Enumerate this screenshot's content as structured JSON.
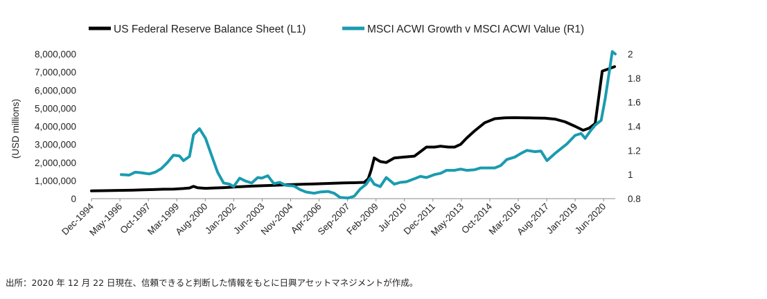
{
  "chart_data": {
    "type": "line",
    "legend_position": "top",
    "left_axis_label": "(USD millions)",
    "left_ticks": [
      "8,000,000",
      "7,000,000",
      "6,000,000",
      "5,000,000",
      "4,000,000",
      "3,000,000",
      "2,000,000",
      "1,000,000",
      "0"
    ],
    "right_ticks": [
      "2",
      "1.8",
      "1.6",
      "1.4",
      "1.2",
      "1",
      "0.8"
    ],
    "left_ylim": [
      0,
      8000000
    ],
    "right_ylim": [
      0.8,
      2.0
    ],
    "x_tick_labels": [
      "Dec-1994",
      "May-1996",
      "Oct-1997",
      "Mar-1999",
      "Aug-2000",
      "Jan-2002",
      "Jun-2003",
      "Nov-2004",
      "Apr-2006",
      "Sep-2007",
      "Feb-2009",
      "Jul-2010",
      "Dec-2011",
      "May-2013",
      "Oct-2014",
      "Mar-2016",
      "Aug-2017",
      "Jan-2019",
      "Jun-2020"
    ],
    "xlim": [
      1994.92,
      2021.0
    ],
    "series": [
      {
        "name": "US Federal Reserve Balance Sheet (L1)",
        "axis": "left",
        "color": "#000000",
        "points": [
          [
            1994.92,
            430000
          ],
          [
            1995.5,
            440000
          ],
          [
            1996.0,
            450000
          ],
          [
            1996.5,
            460000
          ],
          [
            1997.0,
            470000
          ],
          [
            1997.5,
            490000
          ],
          [
            1998.0,
            500000
          ],
          [
            1998.5,
            520000
          ],
          [
            1999.0,
            530000
          ],
          [
            1999.5,
            560000
          ],
          [
            1999.8,
            590000
          ],
          [
            2000.0,
            680000
          ],
          [
            2000.2,
            600000
          ],
          [
            2000.6,
            570000
          ],
          [
            2001.0,
            590000
          ],
          [
            2001.5,
            610000
          ],
          [
            2002.0,
            640000
          ],
          [
            2002.5,
            670000
          ],
          [
            2003.0,
            700000
          ],
          [
            2003.5,
            720000
          ],
          [
            2004.0,
            740000
          ],
          [
            2004.5,
            760000
          ],
          [
            2005.0,
            780000
          ],
          [
            2005.5,
            800000
          ],
          [
            2006.0,
            810000
          ],
          [
            2006.5,
            830000
          ],
          [
            2007.0,
            850000
          ],
          [
            2007.5,
            870000
          ],
          [
            2008.0,
            880000
          ],
          [
            2008.5,
            900000
          ],
          [
            2008.7,
            1100000
          ],
          [
            2008.85,
            1600000
          ],
          [
            2009.0,
            2250000
          ],
          [
            2009.3,
            2050000
          ],
          [
            2009.6,
            2000000
          ],
          [
            2010.0,
            2250000
          ],
          [
            2010.5,
            2300000
          ],
          [
            2011.0,
            2350000
          ],
          [
            2011.3,
            2600000
          ],
          [
            2011.6,
            2850000
          ],
          [
            2012.0,
            2850000
          ],
          [
            2012.3,
            2900000
          ],
          [
            2012.7,
            2850000
          ],
          [
            2013.0,
            2850000
          ],
          [
            2013.3,
            3000000
          ],
          [
            2013.6,
            3350000
          ],
          [
            2014.0,
            3750000
          ],
          [
            2014.5,
            4200000
          ],
          [
            2015.0,
            4420000
          ],
          [
            2015.5,
            4470000
          ],
          [
            2016.0,
            4480000
          ],
          [
            2016.5,
            4470000
          ],
          [
            2017.0,
            4460000
          ],
          [
            2017.5,
            4450000
          ],
          [
            2018.0,
            4400000
          ],
          [
            2018.5,
            4250000
          ],
          [
            2019.0,
            4000000
          ],
          [
            2019.4,
            3780000
          ],
          [
            2019.7,
            3900000
          ],
          [
            2020.0,
            4150000
          ],
          [
            2020.2,
            5800000
          ],
          [
            2020.35,
            7050000
          ],
          [
            2020.6,
            7150000
          ],
          [
            2020.97,
            7300000
          ]
        ]
      },
      {
        "name": "MSCI ACWI Growth v MSCI ACWI Value (R1)",
        "axis": "right",
        "color": "#1a9bb0",
        "points": [
          [
            1996.4,
            1.0
          ],
          [
            1996.8,
            0.995
          ],
          [
            1997.1,
            1.02
          ],
          [
            1997.4,
            1.015
          ],
          [
            1997.8,
            1.005
          ],
          [
            1998.1,
            1.02
          ],
          [
            1998.4,
            1.05
          ],
          [
            1998.7,
            1.1
          ],
          [
            1999.0,
            1.16
          ],
          [
            1999.3,
            1.155
          ],
          [
            1999.5,
            1.115
          ],
          [
            1999.8,
            1.15
          ],
          [
            2000.0,
            1.33
          ],
          [
            2000.3,
            1.38
          ],
          [
            2000.6,
            1.3
          ],
          [
            2000.9,
            1.16
          ],
          [
            2001.2,
            1.02
          ],
          [
            2001.5,
            0.93
          ],
          [
            2001.8,
            0.92
          ],
          [
            2002.0,
            0.9
          ],
          [
            2002.3,
            0.97
          ],
          [
            2002.6,
            0.945
          ],
          [
            2002.9,
            0.93
          ],
          [
            2003.2,
            0.975
          ],
          [
            2003.4,
            0.97
          ],
          [
            2003.7,
            0.99
          ],
          [
            2004.0,
            0.925
          ],
          [
            2004.3,
            0.935
          ],
          [
            2004.6,
            0.91
          ],
          [
            2005.0,
            0.905
          ],
          [
            2005.3,
            0.875
          ],
          [
            2005.6,
            0.855
          ],
          [
            2006.0,
            0.845
          ],
          [
            2006.3,
            0.855
          ],
          [
            2006.7,
            0.86
          ],
          [
            2007.0,
            0.845
          ],
          [
            2007.3,
            0.81
          ],
          [
            2007.7,
            0.805
          ],
          [
            2008.0,
            0.82
          ],
          [
            2008.3,
            0.88
          ],
          [
            2008.6,
            0.92
          ],
          [
            2008.8,
            0.97
          ],
          [
            2009.0,
            0.92
          ],
          [
            2009.3,
            0.9
          ],
          [
            2009.6,
            0.975
          ],
          [
            2010.0,
            0.92
          ],
          [
            2010.3,
            0.935
          ],
          [
            2010.6,
            0.94
          ],
          [
            2011.0,
            0.965
          ],
          [
            2011.3,
            0.985
          ],
          [
            2011.6,
            0.975
          ],
          [
            2012.0,
            1.0
          ],
          [
            2012.3,
            1.01
          ],
          [
            2012.6,
            1.035
          ],
          [
            2013.0,
            1.035
          ],
          [
            2013.3,
            1.045
          ],
          [
            2013.6,
            1.035
          ],
          [
            2014.0,
            1.04
          ],
          [
            2014.3,
            1.055
          ],
          [
            2014.6,
            1.055
          ],
          [
            2015.0,
            1.055
          ],
          [
            2015.3,
            1.075
          ],
          [
            2015.6,
            1.125
          ],
          [
            2016.0,
            1.145
          ],
          [
            2016.3,
            1.175
          ],
          [
            2016.6,
            1.2
          ],
          [
            2017.0,
            1.19
          ],
          [
            2017.3,
            1.195
          ],
          [
            2017.6,
            1.115
          ],
          [
            2018.0,
            1.175
          ],
          [
            2018.3,
            1.215
          ],
          [
            2018.6,
            1.255
          ],
          [
            2019.0,
            1.325
          ],
          [
            2019.3,
            1.34
          ],
          [
            2019.5,
            1.3
          ],
          [
            2019.8,
            1.37
          ],
          [
            2020.0,
            1.41
          ],
          [
            2020.3,
            1.45
          ],
          [
            2020.5,
            1.63
          ],
          [
            2020.7,
            1.85
          ],
          [
            2020.85,
            2.02
          ],
          [
            2021.0,
            2.0
          ]
        ]
      }
    ]
  },
  "footer": {
    "source_text": "出所：2020 年 12 月 22 日現在、信頼できると判断した情報をもとに日興アセットマネジメントが作成。"
  }
}
